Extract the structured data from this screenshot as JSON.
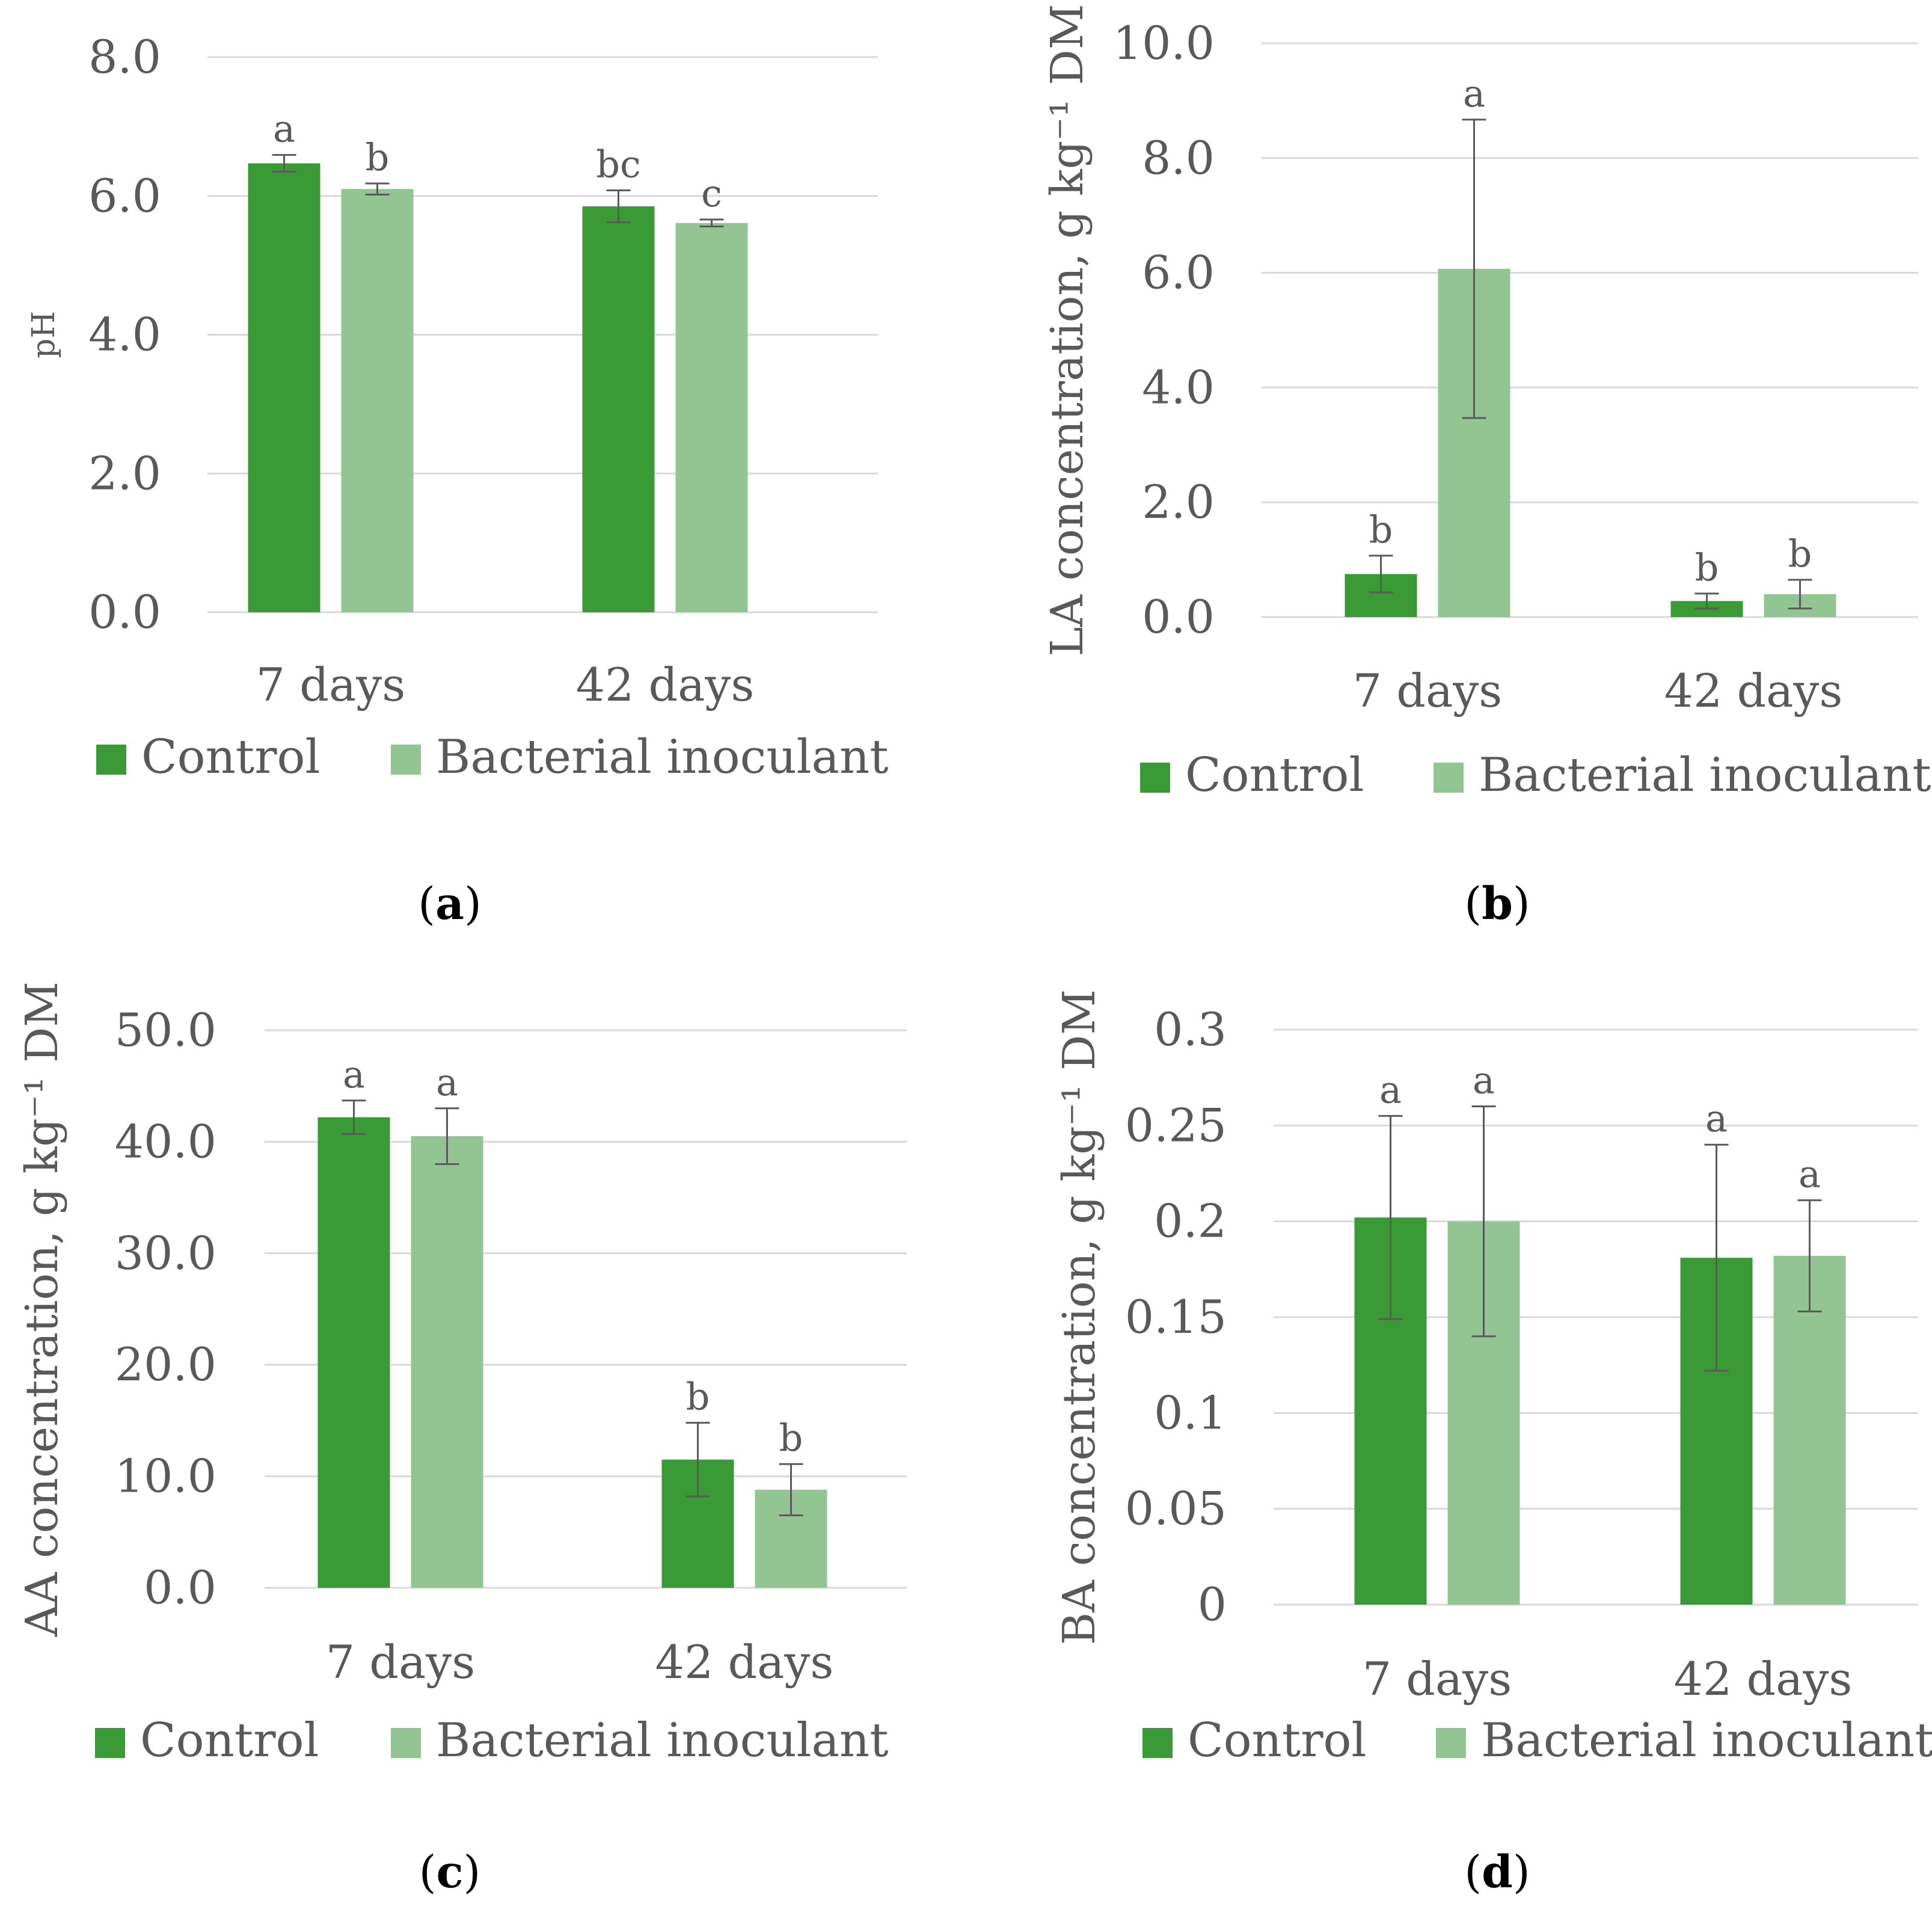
{
  "colors": {
    "control": "#3a9a35",
    "inoculant": "#93c592",
    "grid": "#d9d9d9",
    "text": "#595959",
    "error": "#5a5a5a"
  },
  "chart_data": [
    {
      "type": "bar",
      "panel": "a",
      "caption_open": "(",
      "caption_letter": "a",
      "caption_close": ")",
      "categories": [
        "7 days",
        "42 days"
      ],
      "ylabel": "pH",
      "ylim": [
        0,
        8
      ],
      "yticks": [
        "0.0",
        "2.0",
        "4.0",
        "6.0",
        "8.0"
      ],
      "ytick_values": [
        0,
        2,
        4,
        6,
        8
      ],
      "series": [
        {
          "name": "Control",
          "values": [
            6.47,
            5.85
          ],
          "errors": [
            0.12,
            0.23
          ],
          "letters": [
            "a",
            "bc"
          ]
        },
        {
          "name": "Bacterial inoculant",
          "values": [
            6.1,
            5.61
          ],
          "errors": [
            0.08,
            0.05
          ],
          "letters": [
            "b",
            "c"
          ]
        }
      ],
      "legend": [
        "Control",
        "Bacterial inoculant"
      ],
      "legend_position": "bottom"
    },
    {
      "type": "bar",
      "panel": "b",
      "caption_open": "(",
      "caption_letter": "b",
      "caption_close": ")",
      "categories": [
        "7 days",
        "42 days"
      ],
      "ylabel": "LA concentration, g kg⁻¹ DM",
      "ylim": [
        0,
        10
      ],
      "yticks": [
        "0.0",
        "2.0",
        "4.0",
        "6.0",
        "8.0",
        "10.0"
      ],
      "ytick_values": [
        0,
        2,
        4,
        6,
        8,
        10
      ],
      "series": [
        {
          "name": "Control",
          "values": [
            0.75,
            0.28
          ],
          "errors": [
            0.32,
            0.13
          ],
          "letters": [
            "b",
            "b"
          ]
        },
        {
          "name": "Bacterial inoculant",
          "values": [
            6.07,
            0.4
          ],
          "errors": [
            2.6,
            0.25
          ],
          "letters": [
            "a",
            "b"
          ]
        }
      ],
      "legend": [
        "Control",
        "Bacterial inoculant"
      ],
      "legend_position": "bottom"
    },
    {
      "type": "bar",
      "panel": "c",
      "caption_open": "(",
      "caption_letter": "c",
      "caption_close": ")",
      "categories": [
        "7 days",
        "42 days"
      ],
      "ylabel": "AA concentration, g kg⁻¹ DM",
      "ylim": [
        0,
        50
      ],
      "yticks": [
        "0.0",
        "10.0",
        "20.0",
        "30.0",
        "40.0",
        "50.0"
      ],
      "ytick_values": [
        0,
        10,
        20,
        30,
        40,
        50
      ],
      "series": [
        {
          "name": "Control",
          "values": [
            42.2,
            11.5
          ],
          "errors": [
            1.5,
            3.3
          ],
          "letters": [
            "a",
            "b"
          ]
        },
        {
          "name": "Bacterial inoculant",
          "values": [
            40.5,
            8.8
          ],
          "errors": [
            2.5,
            2.3
          ],
          "letters": [
            "a",
            "b"
          ]
        }
      ],
      "legend": [
        "Control",
        "Bacterial inoculant"
      ],
      "legend_position": "bottom"
    },
    {
      "type": "bar",
      "panel": "d",
      "caption_open": "(",
      "caption_letter": "d",
      "caption_close": ")",
      "categories": [
        "7 days",
        "42 days"
      ],
      "ylabel": "BA concentration, g kg⁻¹ DM",
      "ylim": [
        0,
        0.3
      ],
      "yticks": [
        "0",
        "0.05",
        "0.1",
        "0.15",
        "0.2",
        "0.25",
        "0.3"
      ],
      "ytick_values": [
        0,
        0.05,
        0.1,
        0.15,
        0.2,
        0.25,
        0.3
      ],
      "series": [
        {
          "name": "Control",
          "values": [
            0.202,
            0.181
          ],
          "errors": [
            0.053,
            0.059
          ],
          "letters": [
            "a",
            "a"
          ]
        },
        {
          "name": "Bacterial inoculant",
          "values": [
            0.2,
            0.182
          ],
          "errors": [
            0.06,
            0.029
          ],
          "letters": [
            "a",
            "a"
          ]
        }
      ],
      "legend": [
        "Control",
        "Bacterial inoculant"
      ],
      "legend_position": "bottom"
    }
  ]
}
